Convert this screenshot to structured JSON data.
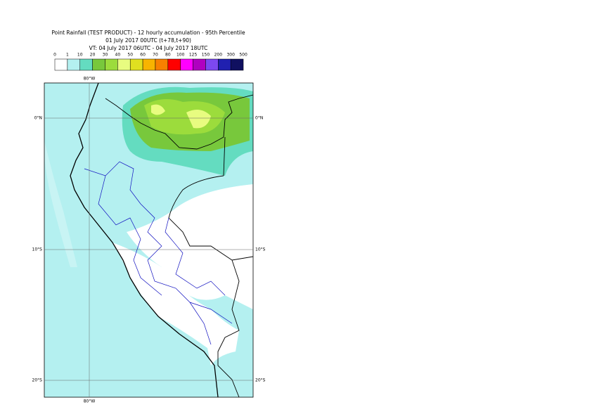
{
  "header": {
    "lines": [
      "Point Rainfall (TEST PRODUCT) - 12 hourly accumulation - 95th Percentile",
      "01 July 2017 00UTC (t+78,t+90)",
      "VT: 04 July 2017 06UTC - 04 July 2017 18UTC"
    ]
  },
  "legend": {
    "labels": [
      0,
      1,
      10,
      20,
      30,
      40,
      50,
      60,
      70,
      80,
      100,
      125,
      150,
      200,
      300,
      500
    ],
    "colors": [
      "#ffffff",
      "#b4f0f0",
      "#64dcc0",
      "#78c83c",
      "#9cdc3c",
      "#e8fc80",
      "#e0e020",
      "#f8b400",
      "#f88000",
      "#ff0000",
      "#ff00ff",
      "#b000c0",
      "#7c48f0",
      "#2020b0",
      "#101060"
    ]
  },
  "map": {
    "lon_label": "80°W",
    "lat_labels": [
      "0°N",
      "10°S",
      "20°S"
    ]
  }
}
